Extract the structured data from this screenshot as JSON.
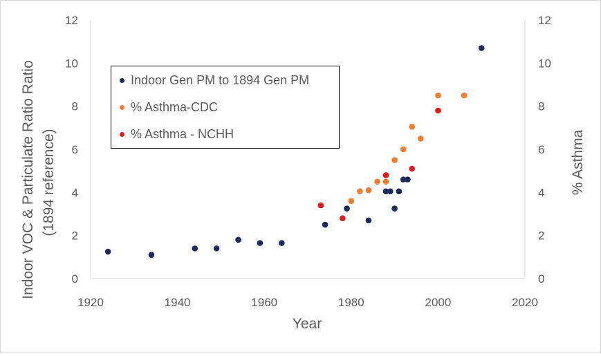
{
  "chart_data": {
    "type": "scatter",
    "title": "",
    "xlabel": "Year",
    "ylabel_line1": "Indoor VOC & Particulate Ratio Ratio",
    "ylabel_line2": "(1894 reference)",
    "y2label": "% Asthma",
    "xlim": [
      1920,
      2020
    ],
    "ylim": [
      0,
      12
    ],
    "y2lim": [
      0,
      12
    ],
    "xticks": [
      1920,
      1940,
      1960,
      1980,
      2000,
      2020
    ],
    "yticks": [
      0,
      2,
      4,
      6,
      8,
      10,
      12
    ],
    "y2ticks": [
      0,
      2,
      4,
      6,
      8,
      10,
      12
    ],
    "grid": false,
    "legend_position": "upper-left",
    "series": [
      {
        "name": "Indoor Gen PM to 1894 Gen PM",
        "color": "#1f2a5c",
        "axis": "left",
        "points": [
          [
            1924,
            1.25
          ],
          [
            1934,
            1.1
          ],
          [
            1944,
            1.4
          ],
          [
            1949,
            1.4
          ],
          [
            1954,
            1.8
          ],
          [
            1959,
            1.65
          ],
          [
            1964,
            1.65
          ],
          [
            1974,
            2.5
          ],
          [
            1979,
            3.25
          ],
          [
            1984,
            2.7
          ],
          [
            1988,
            4.05
          ],
          [
            1989,
            4.05
          ],
          [
            1990,
            3.25
          ],
          [
            1991,
            4.05
          ],
          [
            1992,
            4.6
          ],
          [
            1993,
            4.6
          ],
          [
            2010,
            10.7
          ]
        ]
      },
      {
        "name": "% Asthma-CDC",
        "color": "#ed7d31",
        "axis": "right",
        "points": [
          [
            1980,
            3.6
          ],
          [
            1982,
            4.05
          ],
          [
            1984,
            4.1
          ],
          [
            1986,
            4.5
          ],
          [
            1988,
            4.5
          ],
          [
            1990,
            5.5
          ],
          [
            1992,
            6.0
          ],
          [
            1994,
            7.05
          ],
          [
            1996,
            6.5
          ],
          [
            2000,
            8.5
          ],
          [
            2006,
            8.5
          ]
        ]
      },
      {
        "name": "% Asthma - NCHH",
        "color": "#e31a1c",
        "axis": "right",
        "points": [
          [
            1973,
            3.4
          ],
          [
            1978,
            2.8
          ],
          [
            1988,
            4.8
          ],
          [
            1994,
            5.1
          ],
          [
            2000,
            7.8
          ]
        ]
      }
    ]
  }
}
